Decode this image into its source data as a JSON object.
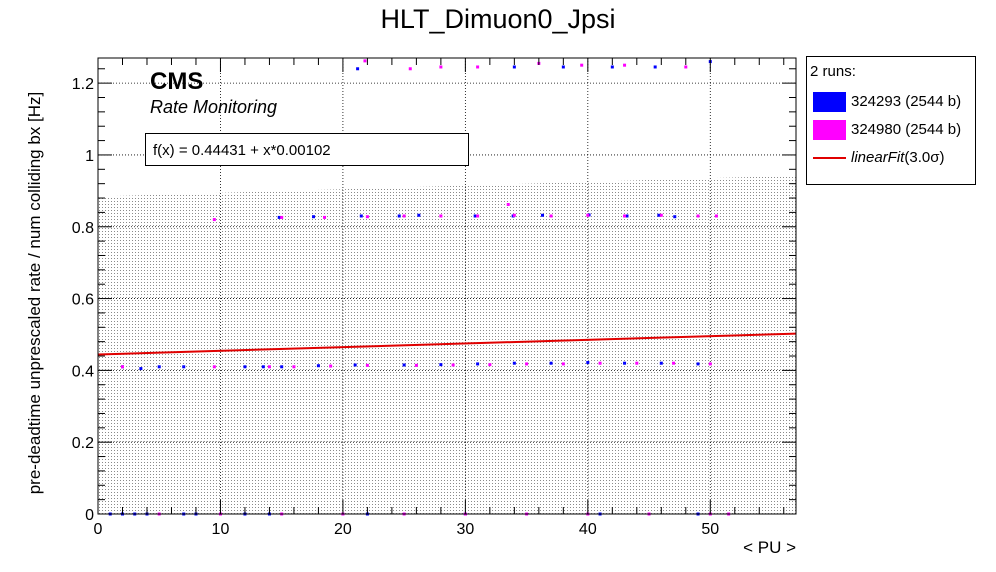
{
  "chart_data": {
    "type": "scatter",
    "title": "HLT_Dimuon0_Jpsi",
    "xlabel": "< PU >",
    "ylabel": "pre-deadtime unprescaled rate / num colliding bx [Hz]",
    "xlim": [
      0,
      57
    ],
    "ylim": [
      0,
      1.27
    ],
    "x_ticks": [
      0,
      10,
      20,
      30,
      40,
      50
    ],
    "y_ticks": [
      0,
      0.2,
      0.4,
      0.6,
      0.8,
      1,
      1.2
    ],
    "x_tick_labels": [
      "0",
      "10",
      "20",
      "30",
      "40",
      "50"
    ],
    "y_tick_labels": [
      "0",
      "0.2",
      "0.4",
      "0.6",
      "0.8",
      "1",
      "1.2"
    ],
    "grid": true,
    "legend_position": "right",
    "legend_header": "2 runs:",
    "legend_label": "(3.0σ)",
    "colors": {
      "run1": "#0000ff",
      "run2": "#ff00ff",
      "fit": "#e00000",
      "band": "#888888"
    },
    "series": [
      {
        "name": "324293 (2544 b)",
        "color": "#0000ff",
        "x": [
          2.0,
          3.5,
          5.0,
          7.0,
          12.0,
          13.5,
          15.0,
          18.0,
          21.0,
          25.0,
          28.0,
          31.0,
          34.0,
          37.0,
          40.0,
          43.0,
          46.0,
          49.0,
          14.8,
          17.6,
          21.5,
          24.6,
          26.2,
          30.8,
          33.9,
          36.3,
          40.1,
          43.2,
          45.8,
          47.1,
          21.2,
          34.0,
          38.0,
          42.0,
          45.5,
          50.0,
          1.0,
          2.0,
          3.0,
          4.0,
          7.0,
          8.0,
          12.0,
          14.0,
          22.0,
          30.0,
          41.0,
          49.0
        ],
        "y": [
          0.41,
          0.405,
          0.41,
          0.41,
          0.41,
          0.41,
          0.41,
          0.413,
          0.415,
          0.415,
          0.416,
          0.418,
          0.42,
          0.42,
          0.422,
          0.42,
          0.42,
          0.418,
          0.826,
          0.828,
          0.83,
          0.83,
          0.832,
          0.83,
          0.83,
          0.832,
          0.833,
          0.83,
          0.832,
          0.828,
          1.24,
          1.245,
          1.245,
          1.245,
          1.245,
          1.26,
          0,
          0,
          0,
          0,
          0,
          0,
          0,
          0,
          0,
          0,
          0,
          0
        ]
      },
      {
        "name": "324980 (2544 b)",
        "color": "#ff00ff",
        "x": [
          2.0,
          9.5,
          14.0,
          16.0,
          19.0,
          22.0,
          26.0,
          29.0,
          32.0,
          35.0,
          38.0,
          41.0,
          44.0,
          47.0,
          50.0,
          9.5,
          15.0,
          18.5,
          22.0,
          25.0,
          28.0,
          31.0,
          34.0,
          37.0,
          40.0,
          43.0,
          46.0,
          49.0,
          50.5,
          21.8,
          25.5,
          28.0,
          31.0,
          36.0,
          39.5,
          43.0,
          48.0,
          33.5,
          5.0,
          10.0,
          15.0,
          20.0,
          25.0,
          30.0,
          35.0,
          40.0,
          45.0,
          50.0,
          51.5
        ],
        "y": [
          0.41,
          0.41,
          0.41,
          0.41,
          0.412,
          0.414,
          0.414,
          0.415,
          0.416,
          0.418,
          0.418,
          0.42,
          0.42,
          0.42,
          0.418,
          0.82,
          0.826,
          0.826,
          0.828,
          0.83,
          0.83,
          0.83,
          0.832,
          0.83,
          0.832,
          0.83,
          0.832,
          0.83,
          0.83,
          1.262,
          1.24,
          1.245,
          1.245,
          1.255,
          1.25,
          1.25,
          1.245,
          0.862,
          0,
          0,
          0,
          0,
          0,
          0,
          0,
          0,
          0,
          0,
          0
        ]
      }
    ],
    "fit": {
      "name": "linearFit",
      "formula_label": "f(x) = 0.44431 + x*0.00102",
      "intercept": 0.44431,
      "slope": 0.00102,
      "band_sigma": 3.0,
      "band_width": 0.44
    },
    "annotations": {
      "experiment": "CMS",
      "subtitle": "Rate Monitoring"
    }
  }
}
